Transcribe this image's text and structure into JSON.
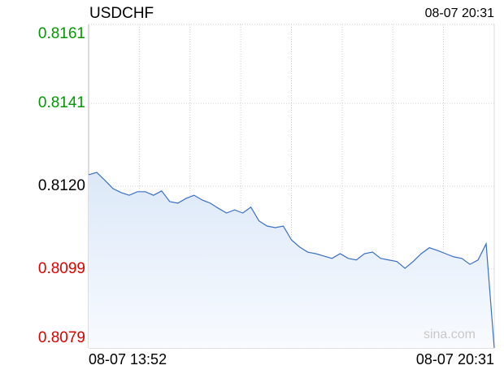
{
  "chart_data": {
    "type": "line",
    "title": "USDCHF",
    "timestamp": "08-07 20:31",
    "watermark": "sina.com",
    "categories": [
      "08-07 13:52",
      null,
      null,
      null,
      null,
      null,
      null,
      null,
      null,
      null,
      null,
      null,
      null,
      null,
      null,
      null,
      null,
      null,
      null,
      null,
      null,
      null,
      null,
      null,
      null,
      null,
      null,
      null,
      null,
      null,
      null,
      null,
      null,
      null,
      null,
      null,
      null,
      null,
      null,
      null,
      null,
      null,
      null,
      null,
      null,
      null,
      null,
      null,
      null,
      null,
      "08-07 20:31"
    ],
    "series": [
      {
        "name": "USDCHF",
        "color": "#3a6fc4",
        "values": [
          0.81229,
          0.81235,
          0.81215,
          0.81194,
          0.81184,
          0.81177,
          0.81186,
          0.81186,
          0.81177,
          0.81188,
          0.81161,
          0.81157,
          0.81169,
          0.81177,
          0.81165,
          0.81157,
          0.81144,
          0.81132,
          0.8114,
          0.81132,
          0.81147,
          0.81112,
          0.81099,
          0.81095,
          0.81099,
          0.81064,
          0.81046,
          0.81033,
          0.81029,
          0.81023,
          0.81017,
          0.81029,
          0.81017,
          0.81013,
          0.81029,
          0.81033,
          0.81017,
          0.81013,
          0.81009,
          0.80992,
          0.81009,
          0.81029,
          0.81044,
          0.81037,
          0.81029,
          0.81021,
          0.81017,
          0.81002,
          0.81013,
          0.81054,
          0.8079
        ]
      }
    ],
    "ylim": [
      0.8079,
      0.8161
    ],
    "yticks": [
      0.8161,
      0.8141,
      {
        "value": 0.812,
        "label": "0.8120"
      },
      0.8099,
      0.8079
    ],
    "ytick_colors": [
      "#009900",
      "#009900",
      "#000000",
      "#dd0000",
      "#dd0000"
    ],
    "grid": true
  }
}
